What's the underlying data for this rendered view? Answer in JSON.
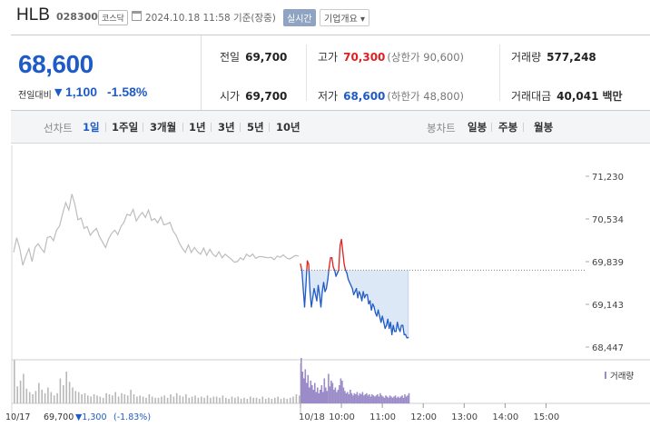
{
  "header": {
    "stock_name": "HLB",
    "stock_code": "028300",
    "market": "코스닥",
    "timestamp": "2024.10.18 11:58 기준(장중)",
    "realtime_label": "실시간",
    "company_info_label": "기업개요 ▾"
  },
  "price": {
    "current": "68,600",
    "change_label": "전일대비",
    "change_value": "1,100",
    "change_pct": "-1.58%"
  },
  "stats": {
    "prev_label": "전일",
    "prev_value": "69,700",
    "open_label": "시가",
    "open_value": "69,700",
    "high_label": "고가",
    "high_value": "70,300",
    "upper_limit": "(상한가 90,600)",
    "low_label": "저가",
    "low_value": "68,600",
    "lower_limit": "(하한가 48,800)",
    "volume_label": "거래량",
    "volume_value": "577,248",
    "amount_label": "거래대금",
    "amount_value": "40,041",
    "amount_unit": "백만"
  },
  "period_bar": {
    "line_title": "선차트",
    "line_periods": [
      "1일",
      "1주일",
      "3개월",
      "1년",
      "3년",
      "5년",
      "10년"
    ],
    "candle_title": "봉차트",
    "candle_periods": [
      "일봉",
      "주봉",
      "월봉"
    ]
  },
  "colors": {
    "up": "#e02020",
    "down": "#1f5bc6",
    "prev_day_line": "#bdbdbd",
    "area_fill": "#dde8f7",
    "volume_today": "#9b8bc8",
    "volume_prev": "#b8b8b8"
  },
  "chart_data": {
    "type": "line",
    "y_ticks": [
      "71,230",
      "70,534",
      "69,839",
      "69,143",
      "68,447"
    ],
    "ylim": [
      68447,
      71230
    ],
    "reference_price": 69700,
    "x_tick_labels": [
      "10/18",
      "10:00",
      "11:00",
      "12:00",
      "13:00",
      "14:00",
      "15:00"
    ],
    "x_tick_minutes": [
      540,
      600,
      660,
      720,
      780,
      840,
      900
    ],
    "session_minutes": [
      540,
      930
    ],
    "volume_legend": "거래량",
    "footer_prev_date": "10/17",
    "footer_prev_price": "69,700",
    "footer_prev_change": "▼1,300",
    "footer_prev_pct": "(-1.83%)",
    "previous_day": {
      "label": "10/17",
      "values": [
        69990,
        70230,
        70050,
        69780,
        69930,
        70050,
        69840,
        70070,
        70130,
        70050,
        69990,
        70230,
        70250,
        70180,
        70350,
        70420,
        70620,
        70800,
        70680,
        70940,
        70770,
        70520,
        70550,
        70380,
        70410,
        70270,
        70330,
        70380,
        70250,
        70160,
        70070,
        70210,
        70300,
        70350,
        70280,
        70410,
        70480,
        70610,
        70590,
        70690,
        70500,
        70580,
        70640,
        70560,
        70680,
        70510,
        70540,
        70470,
        70570,
        70440,
        70450,
        70480,
        70340,
        70270,
        70150,
        70060,
        69990,
        70110,
        69990,
        70070,
        70000,
        69960,
        70060,
        69940,
        70040,
        69960,
        69920,
        70000,
        69900,
        69960,
        69920,
        69880,
        69830,
        69840,
        69900,
        69870,
        69960,
        69920,
        69960,
        69890,
        69920,
        69920,
        69910,
        69900,
        69910,
        69870,
        69930,
        69910,
        69950,
        69900,
        69880,
        69910,
        69940,
        69930
      ],
      "volumes": [
        38,
        15,
        20,
        26,
        13,
        10,
        8,
        11,
        18,
        12,
        9,
        14,
        10,
        7,
        9,
        22,
        16,
        28,
        19,
        14,
        11,
        10,
        8,
        9,
        7,
        6,
        8,
        7,
        6,
        5,
        9,
        8,
        7,
        10,
        6,
        9,
        8,
        7,
        12,
        8,
        6,
        7,
        6,
        5,
        8,
        6,
        5,
        5,
        6,
        7,
        5,
        8,
        6,
        9,
        7,
        6,
        8,
        5,
        6,
        7,
        5,
        6,
        5,
        7,
        5,
        6,
        6,
        5,
        7,
        5,
        4,
        6,
        5,
        6,
        4,
        5,
        4,
        6,
        5,
        5,
        4,
        6,
        4,
        5,
        4,
        5,
        6,
        4,
        5,
        4,
        5,
        6,
        8,
        7
      ]
    },
    "today": {
      "label": "10/18",
      "minutes": [
        540,
        542,
        544,
        546,
        548,
        550,
        552,
        554,
        556,
        558,
        560,
        562,
        564,
        566,
        568,
        570,
        572,
        574,
        576,
        578,
        580,
        582,
        584,
        586,
        588,
        590,
        592,
        594,
        596,
        598,
        600,
        602,
        604,
        606,
        608,
        610,
        612,
        614,
        616,
        618,
        620,
        622,
        624,
        626,
        628,
        630,
        632,
        634,
        636,
        638,
        640,
        642,
        644,
        646,
        648,
        650,
        652,
        654,
        656,
        658,
        660,
        662,
        664,
        666,
        668,
        670,
        672,
        674,
        676,
        678,
        680,
        682,
        684,
        686,
        688,
        690,
        692,
        694,
        696,
        698
      ],
      "values": [
        69800,
        69700,
        69400,
        69100,
        69450,
        69850,
        69800,
        69350,
        69100,
        69250,
        69400,
        69300,
        69200,
        69450,
        69300,
        69100,
        69350,
        69500,
        69350,
        69400,
        69550,
        69750,
        69900,
        69900,
        69750,
        69700,
        69600,
        69650,
        69700,
        70100,
        70200,
        70000,
        69800,
        69700,
        69650,
        69550,
        69500,
        69450,
        69400,
        69300,
        69350,
        69400,
        69250,
        69350,
        69300,
        69200,
        69350,
        69250,
        69300,
        69300,
        69150,
        69200,
        69050,
        69150,
        69100,
        69000,
        68950,
        69050,
        68950,
        68850,
        68950,
        68850,
        68750,
        68800,
        68900,
        68750,
        68850,
        68650,
        68800,
        68700,
        68700,
        68850,
        68750,
        68700,
        68800,
        68800,
        68650,
        68650,
        68600,
        68600
      ],
      "volumes": [
        40,
        28,
        22,
        30,
        18,
        25,
        14,
        20,
        16,
        12,
        18,
        10,
        14,
        9,
        12,
        16,
        10,
        22,
        14,
        11,
        26,
        15,
        20,
        18,
        12,
        14,
        10,
        12,
        16,
        22,
        20,
        14,
        11,
        9,
        10,
        8,
        12,
        9,
        7,
        9,
        8,
        10,
        7,
        9,
        8,
        10,
        7,
        8,
        9,
        7,
        8,
        6,
        8,
        7,
        6,
        7,
        8,
        6,
        9,
        7,
        6,
        5,
        7,
        6,
        5,
        7,
        6,
        5,
        6,
        7,
        5,
        6,
        5,
        6,
        7,
        5,
        8,
        6,
        7,
        9
      ]
    }
  }
}
